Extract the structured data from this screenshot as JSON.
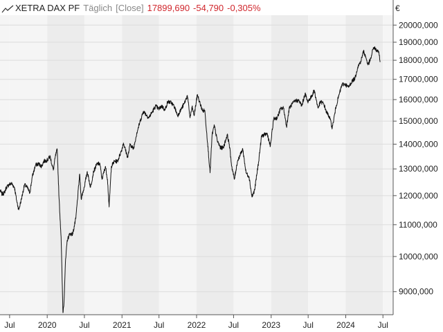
{
  "legend": {
    "instrument": "XETRA DAX PF",
    "period": "Täglich",
    "mode": "[Close]",
    "last": "17899,690",
    "change": "-54,790",
    "change_pct": "-0,305%"
  },
  "colors": {
    "line": "#111111",
    "negative": "#d0262c",
    "band_light": "#f5f5f5",
    "band_dark": "#ececec",
    "grid": "#dcdcdc"
  },
  "chart_data": {
    "type": "line",
    "title": "",
    "xlabel": "",
    "ylabel": "",
    "y_unit": "€",
    "y_scale": "log",
    "ylim": [
      8400,
      20600
    ],
    "xlim": [
      "2019-05-15",
      "2024-08-20"
    ],
    "grid": true,
    "legend_position": "top-left",
    "y_ticks": [
      {
        "value": 9000,
        "label": "9000,000"
      },
      {
        "value": 10000,
        "label": "10000,000"
      },
      {
        "value": 11000,
        "label": "11000,000"
      },
      {
        "value": 12000,
        "label": "12000,000"
      },
      {
        "value": 13000,
        "label": "13000,000"
      },
      {
        "value": 14000,
        "label": "14000,000"
      },
      {
        "value": 15000,
        "label": "15000,000"
      },
      {
        "value": 16000,
        "label": "16000,000"
      },
      {
        "value": 17000,
        "label": "17000,000"
      },
      {
        "value": 18000,
        "label": "18000,000"
      },
      {
        "value": 19000,
        "label": "19000,000"
      },
      {
        "value": 20000,
        "label": "20000,000"
      }
    ],
    "x_ticks": [
      {
        "date": "2019-07-01",
        "label": "Jul"
      },
      {
        "date": "2020-01-01",
        "label": "2020"
      },
      {
        "date": "2020-07-01",
        "label": "Jul"
      },
      {
        "date": "2021-01-01",
        "label": "2021"
      },
      {
        "date": "2021-07-01",
        "label": "Jul"
      },
      {
        "date": "2022-01-01",
        "label": "2022"
      },
      {
        "date": "2022-07-01",
        "label": "Jul"
      },
      {
        "date": "2023-01-01",
        "label": "2023"
      },
      {
        "date": "2023-07-01",
        "label": "Jul"
      },
      {
        "date": "2024-01-01",
        "label": "2024"
      },
      {
        "date": "2024-07-01",
        "label": "Jul"
      }
    ],
    "series": [
      {
        "name": "XETRA DAX PF",
        "points": [
          [
            "2019-05-15",
            12200
          ],
          [
            "2019-05-25",
            12050
          ],
          [
            "2019-06-05",
            12100
          ],
          [
            "2019-06-15",
            12300
          ],
          [
            "2019-06-28",
            12400
          ],
          [
            "2019-07-10",
            12450
          ],
          [
            "2019-07-25",
            12300
          ],
          [
            "2019-08-05",
            11800
          ],
          [
            "2019-08-15",
            11500
          ],
          [
            "2019-08-30",
            11950
          ],
          [
            "2019-09-12",
            12400
          ],
          [
            "2019-09-25",
            12300
          ],
          [
            "2019-10-08",
            12100
          ],
          [
            "2019-10-20",
            12700
          ],
          [
            "2019-11-05",
            13150
          ],
          [
            "2019-11-20",
            13200
          ],
          [
            "2019-12-05",
            13100
          ],
          [
            "2019-12-15",
            13300
          ],
          [
            "2020-01-02",
            13350
          ],
          [
            "2020-01-15",
            13500
          ],
          [
            "2020-01-31",
            12950
          ],
          [
            "2020-02-10",
            13500
          ],
          [
            "2020-02-19",
            13780
          ],
          [
            "2020-02-28",
            11900
          ],
          [
            "2020-03-09",
            10600
          ],
          [
            "2020-03-18",
            8450
          ],
          [
            "2020-03-23",
            8700
          ],
          [
            "2020-03-30",
            9800
          ],
          [
            "2020-04-08",
            10500
          ],
          [
            "2020-04-20",
            10700
          ],
          [
            "2020-05-05",
            10700
          ],
          [
            "2020-05-20",
            11200
          ],
          [
            "2020-06-08",
            12800
          ],
          [
            "2020-06-15",
            11900
          ],
          [
            "2020-06-30",
            12300
          ],
          [
            "2020-07-15",
            12900
          ],
          [
            "2020-07-31",
            12300
          ],
          [
            "2020-08-15",
            12900
          ],
          [
            "2020-09-01",
            13200
          ],
          [
            "2020-09-15",
            13200
          ],
          [
            "2020-09-25",
            12600
          ],
          [
            "2020-10-12",
            13100
          ],
          [
            "2020-10-22",
            12600
          ],
          [
            "2020-10-30",
            11600
          ],
          [
            "2020-11-10",
            13100
          ],
          [
            "2020-11-25",
            13300
          ],
          [
            "2020-12-10",
            13300
          ],
          [
            "2020-12-30",
            13750
          ],
          [
            "2021-01-08",
            14050
          ],
          [
            "2021-01-29",
            13450
          ],
          [
            "2021-02-10",
            14000
          ],
          [
            "2021-02-26",
            13800
          ],
          [
            "2021-03-15",
            14500
          ],
          [
            "2021-03-31",
            15000
          ],
          [
            "2021-04-16",
            15450
          ],
          [
            "2021-05-12",
            15150
          ],
          [
            "2021-05-31",
            15450
          ],
          [
            "2021-06-15",
            15700
          ],
          [
            "2021-06-30",
            15550
          ],
          [
            "2021-07-15",
            15700
          ],
          [
            "2021-07-30",
            15500
          ],
          [
            "2021-08-13",
            15900
          ],
          [
            "2021-08-31",
            15850
          ],
          [
            "2021-09-15",
            15650
          ],
          [
            "2021-09-30",
            15250
          ],
          [
            "2021-10-15",
            15500
          ],
          [
            "2021-11-01",
            15800
          ],
          [
            "2021-11-17",
            16200
          ],
          [
            "2021-11-30",
            15150
          ],
          [
            "2021-12-10",
            15650
          ],
          [
            "2021-12-20",
            15250
          ],
          [
            "2022-01-05",
            16250
          ],
          [
            "2022-01-15",
            15900
          ],
          [
            "2022-01-31",
            15450
          ],
          [
            "2022-02-10",
            15500
          ],
          [
            "2022-02-24",
            14050
          ],
          [
            "2022-03-08",
            12850
          ],
          [
            "2022-03-18",
            14400
          ],
          [
            "2022-03-29",
            14800
          ],
          [
            "2022-04-12",
            14150
          ],
          [
            "2022-04-28",
            13850
          ],
          [
            "2022-05-12",
            13850
          ],
          [
            "2022-05-31",
            14400
          ],
          [
            "2022-06-10",
            14000
          ],
          [
            "2022-06-22",
            13100
          ],
          [
            "2022-07-05",
            12600
          ],
          [
            "2022-07-20",
            13300
          ],
          [
            "2022-08-15",
            13800
          ],
          [
            "2022-08-31",
            12850
          ],
          [
            "2022-09-15",
            12700
          ],
          [
            "2022-09-29",
            11950
          ],
          [
            "2022-10-12",
            12200
          ],
          [
            "2022-10-31",
            13250
          ],
          [
            "2022-11-15",
            14350
          ],
          [
            "2022-11-30",
            14400
          ],
          [
            "2022-12-13",
            14450
          ],
          [
            "2022-12-28",
            13900
          ],
          [
            "2023-01-13",
            15100
          ],
          [
            "2023-01-31",
            15150
          ],
          [
            "2023-02-15",
            15550
          ],
          [
            "2023-03-03",
            15600
          ],
          [
            "2023-03-17",
            14750
          ],
          [
            "2023-03-31",
            15600
          ],
          [
            "2023-04-15",
            15800
          ],
          [
            "2023-04-30",
            15950
          ],
          [
            "2023-05-17",
            15950
          ],
          [
            "2023-05-31",
            15700
          ],
          [
            "2023-06-16",
            16300
          ],
          [
            "2023-06-28",
            15900
          ],
          [
            "2023-07-15",
            16100
          ],
          [
            "2023-07-31",
            16450
          ],
          [
            "2023-08-18",
            15600
          ],
          [
            "2023-08-31",
            15900
          ],
          [
            "2023-09-15",
            15800
          ],
          [
            "2023-09-29",
            15400
          ],
          [
            "2023-10-13",
            15200
          ],
          [
            "2023-10-27",
            14700
          ],
          [
            "2023-11-15",
            15700
          ],
          [
            "2023-11-30",
            16250
          ],
          [
            "2023-12-14",
            16750
          ],
          [
            "2023-12-29",
            16750
          ],
          [
            "2024-01-15",
            16600
          ],
          [
            "2024-01-31",
            16900
          ],
          [
            "2024-02-15",
            17050
          ],
          [
            "2024-02-29",
            17650
          ],
          [
            "2024-03-15",
            17950
          ],
          [
            "2024-03-28",
            18500
          ],
          [
            "2024-04-10",
            18100
          ],
          [
            "2024-04-19",
            17750
          ],
          [
            "2024-05-03",
            18100
          ],
          [
            "2024-05-15",
            18700
          ],
          [
            "2024-05-23",
            18650
          ],
          [
            "2024-05-31",
            18500
          ],
          [
            "2024-06-07",
            18550
          ],
          [
            "2024-06-13",
            18250
          ],
          [
            "2024-06-17",
            17900
          ]
        ]
      }
    ]
  }
}
